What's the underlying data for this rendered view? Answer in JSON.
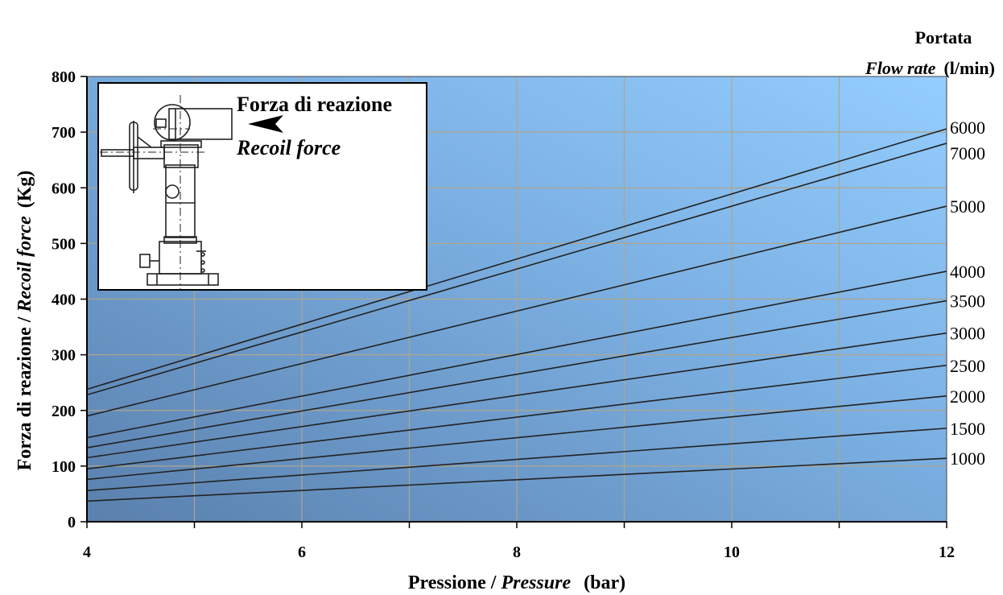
{
  "chart_data": {
    "type": "line",
    "xlabel_main": "Pressione / ",
    "xlabel_italic": "Pressure",
    "xlabel_unit": "(bar)",
    "ylabel_main": "Forza di reazione / ",
    "ylabel_italic": "Recoil force",
    "ylabel_unit": "(Kg)",
    "right_label_line1": "Portata",
    "right_label_italic": "Flow rate",
    "right_label_unit": "(l/min)",
    "xlim": [
      4,
      12
    ],
    "ylim": [
      0,
      800
    ],
    "x_ticks": [
      "4",
      "6",
      "8",
      "10",
      "12"
    ],
    "y_ticks": [
      "0",
      "100",
      "200",
      "300",
      "400",
      "500",
      "600",
      "700",
      "800"
    ],
    "x_grid_step": 1,
    "y_grid_step": 100,
    "grid": true,
    "series": [
      {
        "name": "1000",
        "x": [
          4,
          12
        ],
        "y": [
          37,
          114
        ]
      },
      {
        "name": "1500",
        "x": [
          4,
          12
        ],
        "y": [
          56,
          168
        ]
      },
      {
        "name": "2000",
        "x": [
          4,
          12
        ],
        "y": [
          76,
          226
        ]
      },
      {
        "name": "2500",
        "x": [
          4,
          12
        ],
        "y": [
          95,
          281
        ]
      },
      {
        "name": "3000",
        "x": [
          4,
          12
        ],
        "y": [
          115,
          339
        ]
      },
      {
        "name": "3500",
        "x": [
          4,
          12
        ],
        "y": [
          133,
          397
        ]
      },
      {
        "name": "4000",
        "x": [
          4,
          12
        ],
        "y": [
          151,
          450
        ]
      },
      {
        "name": "5000",
        "x": [
          4,
          12
        ],
        "y": [
          190,
          567
        ]
      },
      {
        "name": "6000",
        "x": [
          4,
          12
        ],
        "y": [
          238,
          706
        ]
      },
      {
        "name": "7000",
        "x": [
          4,
          12
        ],
        "y": [
          228,
          680
        ]
      }
    ],
    "inset": {
      "label": "Forza di reazione",
      "label_italic": "Recoil force"
    },
    "colors": {
      "plot_top_right": "#8ec8ff",
      "plot_bottom_left": "#5c83b0",
      "line": "#222222",
      "grid": "#b0a58c"
    }
  }
}
